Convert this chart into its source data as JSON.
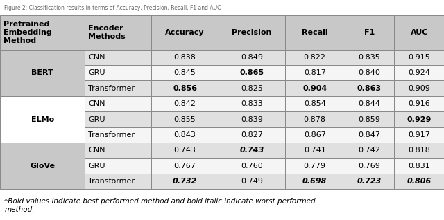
{
  "title": "Figure 2: Classification results in terms of Accuracy, Precision, Recall, F1 and AUC",
  "footnote": "*Bold values indicate best performed method and bold italic indicate worst performed\nmethod.",
  "headers": [
    "Pretrained\nEmbedding\nMethod",
    "Encoder\nMethods",
    "Accuracy",
    "Precision",
    "Recall",
    "F1",
    "AUC"
  ],
  "groups": [
    {
      "label": "BERT",
      "rows": [
        {
          "encoder": "CNN",
          "accuracy": "0.838",
          "precision": "0.849",
          "recall": "0.822",
          "f1": "0.835",
          "auc": "0.915",
          "bold": [],
          "bold_italic": []
        },
        {
          "encoder": "GRU",
          "accuracy": "0.845",
          "precision": "0.865",
          "recall": "0.817",
          "f1": "0.840",
          "auc": "0.924",
          "bold": [
            "precision"
          ],
          "bold_italic": []
        },
        {
          "encoder": "Transformer",
          "accuracy": "0.856",
          "precision": "0.825",
          "recall": "0.904",
          "f1": "0.863",
          "auc": "0.909",
          "bold": [
            "accuracy",
            "recall",
            "f1"
          ],
          "bold_italic": []
        }
      ]
    },
    {
      "label": "ELMo",
      "rows": [
        {
          "encoder": "CNN",
          "accuracy": "0.842",
          "precision": "0.833",
          "recall": "0.854",
          "f1": "0.844",
          "auc": "0.916",
          "bold": [],
          "bold_italic": []
        },
        {
          "encoder": "GRU",
          "accuracy": "0.855",
          "precision": "0.839",
          "recall": "0.878",
          "f1": "0.859",
          "auc": "0.929",
          "bold": [
            "auc"
          ],
          "bold_italic": []
        },
        {
          "encoder": "Transformer",
          "accuracy": "0.843",
          "precision": "0.827",
          "recall": "0.867",
          "f1": "0.847",
          "auc": "0.917",
          "bold": [],
          "bold_italic": []
        }
      ]
    },
    {
      "label": "GloVe",
      "rows": [
        {
          "encoder": "CNN",
          "accuracy": "0.743",
          "precision": "0.743",
          "recall": "0.741",
          "f1": "0.742",
          "auc": "0.818",
          "bold": [],
          "bold_italic": [
            "precision"
          ]
        },
        {
          "encoder": "GRU",
          "accuracy": "0.767",
          "precision": "0.760",
          "recall": "0.779",
          "f1": "0.769",
          "auc": "0.831",
          "bold": [],
          "bold_italic": []
        },
        {
          "encoder": "Transformer",
          "accuracy": "0.732",
          "precision": "0.749",
          "recall": "0.698",
          "f1": "0.723",
          "auc": "0.806",
          "bold": [],
          "bold_italic": [
            "accuracy",
            "recall",
            "f1",
            "auc"
          ]
        }
      ]
    }
  ],
  "col_keys": [
    "accuracy",
    "precision",
    "recall",
    "f1",
    "auc"
  ],
  "header_bg": "#c8c8c8",
  "group_bgs": [
    "#c8c8c8",
    "#ffffff",
    "#c8c8c8"
  ],
  "row_bgs": [
    [
      "#e0e0e0",
      "#f5f5f5",
      "#e0e0e0"
    ],
    [
      "#f5f5f5",
      "#e0e0e0",
      "#f5f5f5"
    ],
    [
      "#e0e0e0",
      "#f5f5f5",
      "#e0e0e0"
    ]
  ],
  "border_color": "#888888",
  "font_size": 8.0,
  "title_fontsize": 5.5,
  "footnote_fontsize": 7.5
}
